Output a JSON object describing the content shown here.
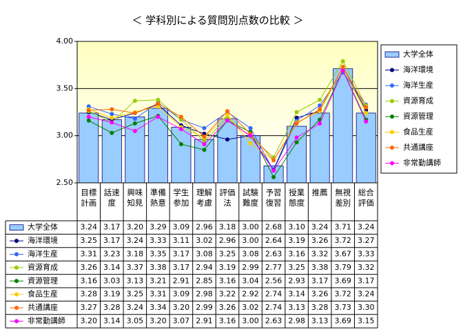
{
  "chart_data": {
    "type": "bar-line",
    "title": "＜ 学科別による質問別点数の比較 ＞",
    "categories": [
      "目標計画",
      "話速度",
      "興味知見",
      "準備熱意",
      "学生参加",
      "理解考慮",
      "評価法",
      "試験難度",
      "予習復習",
      "授業態度",
      "推薦",
      "無視差別",
      "総合評価"
    ],
    "ylim": [
      2.5,
      4.0
    ],
    "yticks": [
      {
        "value": 2.5,
        "label": "2.50"
      },
      {
        "value": 3.0,
        "label": "3.00"
      },
      {
        "value": 3.5,
        "label": "3.50"
      },
      {
        "value": 4.0,
        "label": "4.00"
      }
    ],
    "grid": true,
    "legend": "right",
    "series": [
      {
        "name": "大学全体",
        "type": "bar",
        "color": "#99ccff",
        "values": [
          3.24,
          3.17,
          3.2,
          3.29,
          3.09,
          2.96,
          3.18,
          3.0,
          2.68,
          3.1,
          3.24,
          3.71,
          3.24
        ],
        "value_labels": [
          "3.24",
          "3.17",
          "3.20",
          "3.29",
          "3.09",
          "2.96",
          "3.18",
          "3.00",
          "2.68",
          "3.10",
          "3.24",
          "3.71",
          "3.24"
        ]
      },
      {
        "name": "海洋環境",
        "type": "line",
        "color": "#000080",
        "values": [
          3.25,
          3.17,
          3.24,
          3.33,
          3.11,
          3.02,
          2.96,
          3.0,
          2.64,
          3.19,
          3.26,
          3.72,
          3.27
        ],
        "value_labels": [
          "3.25",
          "3.17",
          "3.24",
          "3.33",
          "3.11",
          "3.02",
          "2.96",
          "3.00",
          "2.64",
          "3.19",
          "3.26",
          "3.72",
          "3.27"
        ]
      },
      {
        "name": "海洋生産",
        "type": "line",
        "color": "#3366ff",
        "values": [
          3.31,
          3.23,
          3.18,
          3.35,
          3.17,
          3.08,
          3.25,
          3.08,
          2.63,
          3.16,
          3.32,
          3.67,
          3.33
        ],
        "value_labels": [
          "3.31",
          "3.23",
          "3.18",
          "3.35",
          "3.17",
          "3.08",
          "3.25",
          "3.08",
          "2.63",
          "3.16",
          "3.32",
          "3.67",
          "3.33"
        ]
      },
      {
        "name": "資源育成",
        "type": "line",
        "color": "#99cc00",
        "values": [
          3.26,
          3.14,
          3.37,
          3.38,
          3.17,
          2.94,
          3.19,
          2.99,
          2.77,
          3.25,
          3.38,
          3.79,
          3.32
        ],
        "value_labels": [
          "3.26",
          "3.14",
          "3.37",
          "3.38",
          "3.17",
          "2.94",
          "3.19",
          "2.99",
          "2.77",
          "3.25",
          "3.38",
          "3.79",
          "3.32"
        ]
      },
      {
        "name": "資源管理",
        "type": "line",
        "color": "#008000",
        "values": [
          3.16,
          3.03,
          3.13,
          3.21,
          2.91,
          2.85,
          3.16,
          3.04,
          2.56,
          2.93,
          3.17,
          3.69,
          3.17
        ],
        "value_labels": [
          "3.16",
          "3.03",
          "3.13",
          "3.21",
          "2.91",
          "2.85",
          "3.16",
          "3.04",
          "2.56",
          "2.93",
          "3.17",
          "3.69",
          "3.17"
        ]
      },
      {
        "name": "食品生産",
        "type": "line",
        "color": "#ffcc00",
        "values": [
          3.28,
          3.19,
          3.25,
          3.31,
          3.09,
          2.98,
          3.22,
          2.92,
          2.74,
          3.14,
          3.26,
          3.72,
          3.24
        ],
        "value_labels": [
          "3.28",
          "3.19",
          "3.25",
          "3.31",
          "3.09",
          "2.98",
          "3.22",
          "2.92",
          "2.74",
          "3.14",
          "3.26",
          "3.72",
          "3.24"
        ]
      },
      {
        "name": "共通講座",
        "type": "line",
        "color": "#ff6600",
        "values": [
          3.27,
          3.28,
          3.24,
          3.34,
          3.2,
          2.99,
          3.26,
          3.02,
          2.74,
          3.13,
          3.28,
          3.73,
          3.3
        ],
        "value_labels": [
          "3.27",
          "3.28",
          "3.24",
          "3.34",
          "3.20",
          "2.99",
          "3.26",
          "3.02",
          "2.74",
          "3.13",
          "3.28",
          "3.73",
          "3.30"
        ]
      },
      {
        "name": "非常勤講師",
        "type": "line",
        "color": "#ff00ff",
        "values": [
          3.2,
          3.14,
          3.05,
          3.2,
          3.07,
          2.91,
          3.16,
          3.0,
          2.63,
          2.98,
          3.13,
          3.69,
          3.15
        ],
        "value_labels": [
          "3.20",
          "3.14",
          "3.05",
          "3.20",
          "3.07",
          "2.91",
          "3.16",
          "3.00",
          "2.63",
          "2.98",
          "3.13",
          "3.69",
          "3.15"
        ]
      }
    ]
  }
}
